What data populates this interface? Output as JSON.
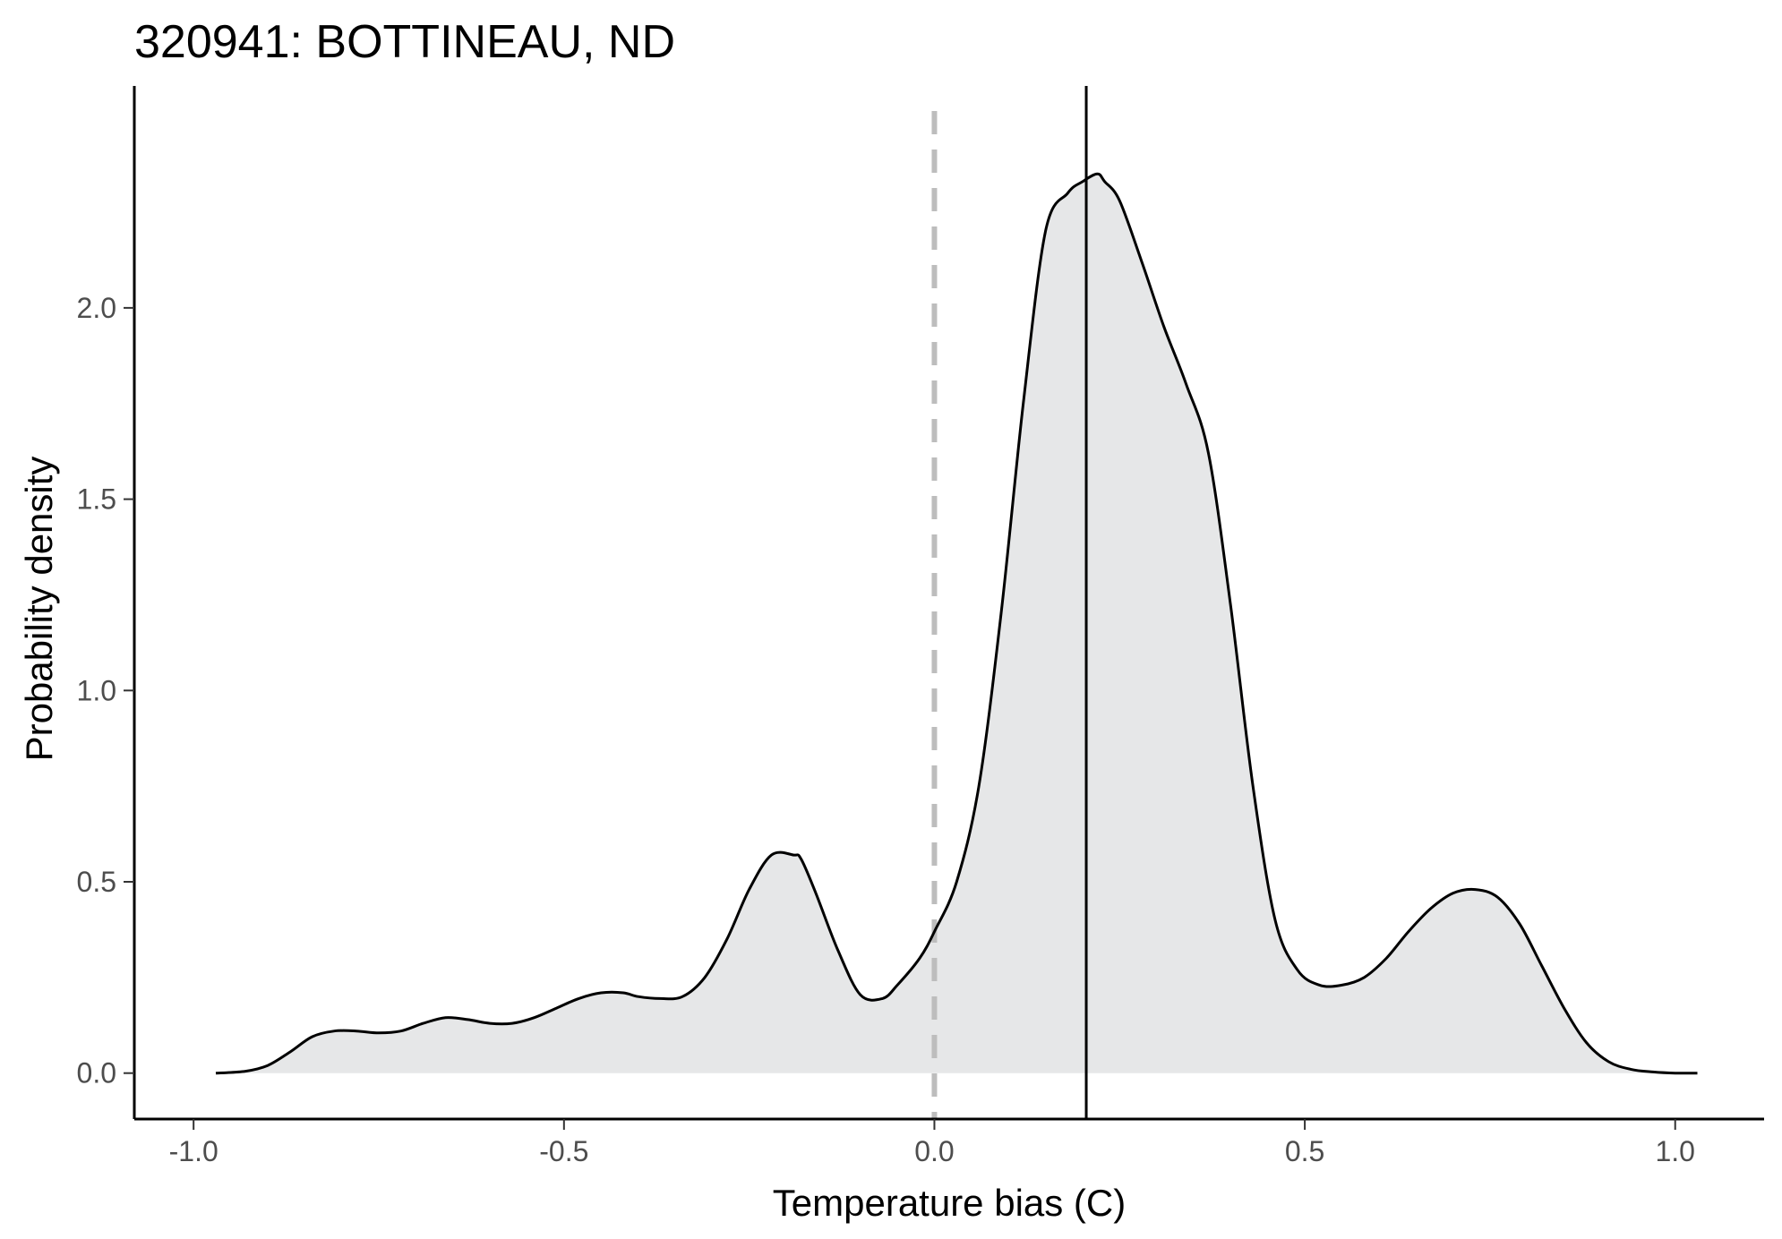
{
  "chart_data": {
    "type": "area",
    "title": "320941: BOTTINEAU, ND",
    "xlabel": "Temperature bias (C)",
    "ylabel": "Probability density",
    "xlim": [
      -1.08,
      1.12
    ],
    "ylim": [
      -0.12,
      2.58
    ],
    "x_ticks": [
      -1.0,
      -0.5,
      0.0,
      0.5,
      1.0
    ],
    "x_tick_labels": [
      "-1.0",
      "-0.5",
      "0.0",
      "0.5",
      "1.0"
    ],
    "y_ticks": [
      0.0,
      0.5,
      1.0,
      1.5,
      2.0
    ],
    "y_tick_labels": [
      "0.0",
      "0.5",
      "1.0",
      "1.5",
      "2.0"
    ],
    "grid": false,
    "series": [
      {
        "x": [
          -0.97,
          -0.93,
          -0.9,
          -0.87,
          -0.84,
          -0.81,
          -0.78,
          -0.75,
          -0.72,
          -0.69,
          -0.66,
          -0.63,
          -0.6,
          -0.57,
          -0.54,
          -0.51,
          -0.48,
          -0.45,
          -0.42,
          -0.4,
          -0.37,
          -0.34,
          -0.31,
          -0.28,
          -0.25,
          -0.22,
          -0.19,
          -0.18,
          -0.16,
          -0.13,
          -0.1,
          -0.07,
          -0.05,
          -0.02,
          0.0,
          0.03,
          0.06,
          0.09,
          0.12,
          0.15,
          0.18,
          0.2,
          0.22,
          0.23,
          0.25,
          0.28,
          0.31,
          0.34,
          0.37,
          0.4,
          0.43,
          0.46,
          0.49,
          0.52,
          0.55,
          0.58,
          0.61,
          0.64,
          0.67,
          0.7,
          0.73,
          0.76,
          0.79,
          0.82,
          0.85,
          0.88,
          0.91,
          0.94,
          0.97,
          1.0,
          1.03
        ],
        "y": [
          0.0,
          0.005,
          0.02,
          0.055,
          0.095,
          0.11,
          0.11,
          0.105,
          0.11,
          0.13,
          0.145,
          0.14,
          0.13,
          0.13,
          0.145,
          0.17,
          0.195,
          0.21,
          0.21,
          0.2,
          0.195,
          0.2,
          0.25,
          0.35,
          0.48,
          0.57,
          0.57,
          0.56,
          0.47,
          0.32,
          0.205,
          0.195,
          0.23,
          0.3,
          0.37,
          0.5,
          0.75,
          1.2,
          1.75,
          2.2,
          2.3,
          2.33,
          2.35,
          2.33,
          2.28,
          2.12,
          1.95,
          1.8,
          1.62,
          1.22,
          0.75,
          0.4,
          0.27,
          0.23,
          0.23,
          0.25,
          0.3,
          0.37,
          0.43,
          0.47,
          0.48,
          0.46,
          0.39,
          0.28,
          0.17,
          0.08,
          0.03,
          0.01,
          0.003,
          0.0,
          0.0
        ]
      }
    ],
    "reference_lines": [
      {
        "x": 0.0,
        "style": "dashed",
        "color": "#bdbdbd"
      },
      {
        "x": 0.205,
        "style": "solid",
        "color": "#000000"
      }
    ],
    "fill_color": "#e6e7e8",
    "line_color": "#000000"
  }
}
